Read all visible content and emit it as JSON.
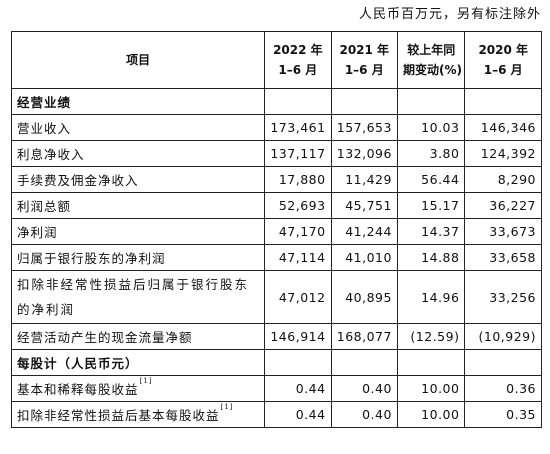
{
  "unit_note": "人民币百万元，另有标注除外",
  "header": {
    "item": "项目",
    "col1": [
      "2022 年",
      "1–6 月"
    ],
    "col2": [
      "2021 年",
      "1–6 月"
    ],
    "col3": [
      "较上年同",
      "期变动(%)"
    ],
    "col4": [
      "2020 年",
      "1–6 月"
    ]
  },
  "sections": {
    "operating": "经营业绩",
    "per_share": "每股计（人民币元）"
  },
  "rows": [
    {
      "label": "营业收入",
      "v1": "173,461",
      "v2": "157,653",
      "v3": "10.03",
      "v4": "146,346"
    },
    {
      "label": "利息净收入",
      "v1": "137,117",
      "v2": "132,096",
      "v3": "3.80",
      "v4": "124,392"
    },
    {
      "label": "手续费及佣金净收入",
      "v1": "17,880",
      "v2": "11,429",
      "v3": "56.44",
      "v4": "8,290"
    },
    {
      "label": "利润总额",
      "v1": "52,693",
      "v2": "45,751",
      "v3": "15.17",
      "v4": "36,227"
    },
    {
      "label": "净利润",
      "v1": "47,170",
      "v2": "41,244",
      "v3": "14.37",
      "v4": "33,673"
    },
    {
      "label": "归属于银行股东的净利润",
      "v1": "47,114",
      "v2": "41,010",
      "v3": "14.88",
      "v4": "33,658"
    },
    {
      "label": "扣除非经常性损益后归属于银行股东的净利润",
      "v1": "47,012",
      "v2": "40,895",
      "v3": "14.96",
      "v4": "33,256"
    },
    {
      "label": "经营活动产生的现金流量净额",
      "v1": "146,914",
      "v2": "168,077",
      "v3": "(12.59)",
      "v4": "(10,929)"
    }
  ],
  "per_share_rows": [
    {
      "label": "基本和稀释每股收益",
      "note": "[1]",
      "v1": "0.44",
      "v2": "0.40",
      "v3": "10.00",
      "v4": "0.36"
    },
    {
      "label": "扣除非经常性损益后基本每股收益",
      "note": "[1]",
      "v1": "0.44",
      "v2": "0.40",
      "v3": "10.00",
      "v4": "0.35"
    }
  ]
}
